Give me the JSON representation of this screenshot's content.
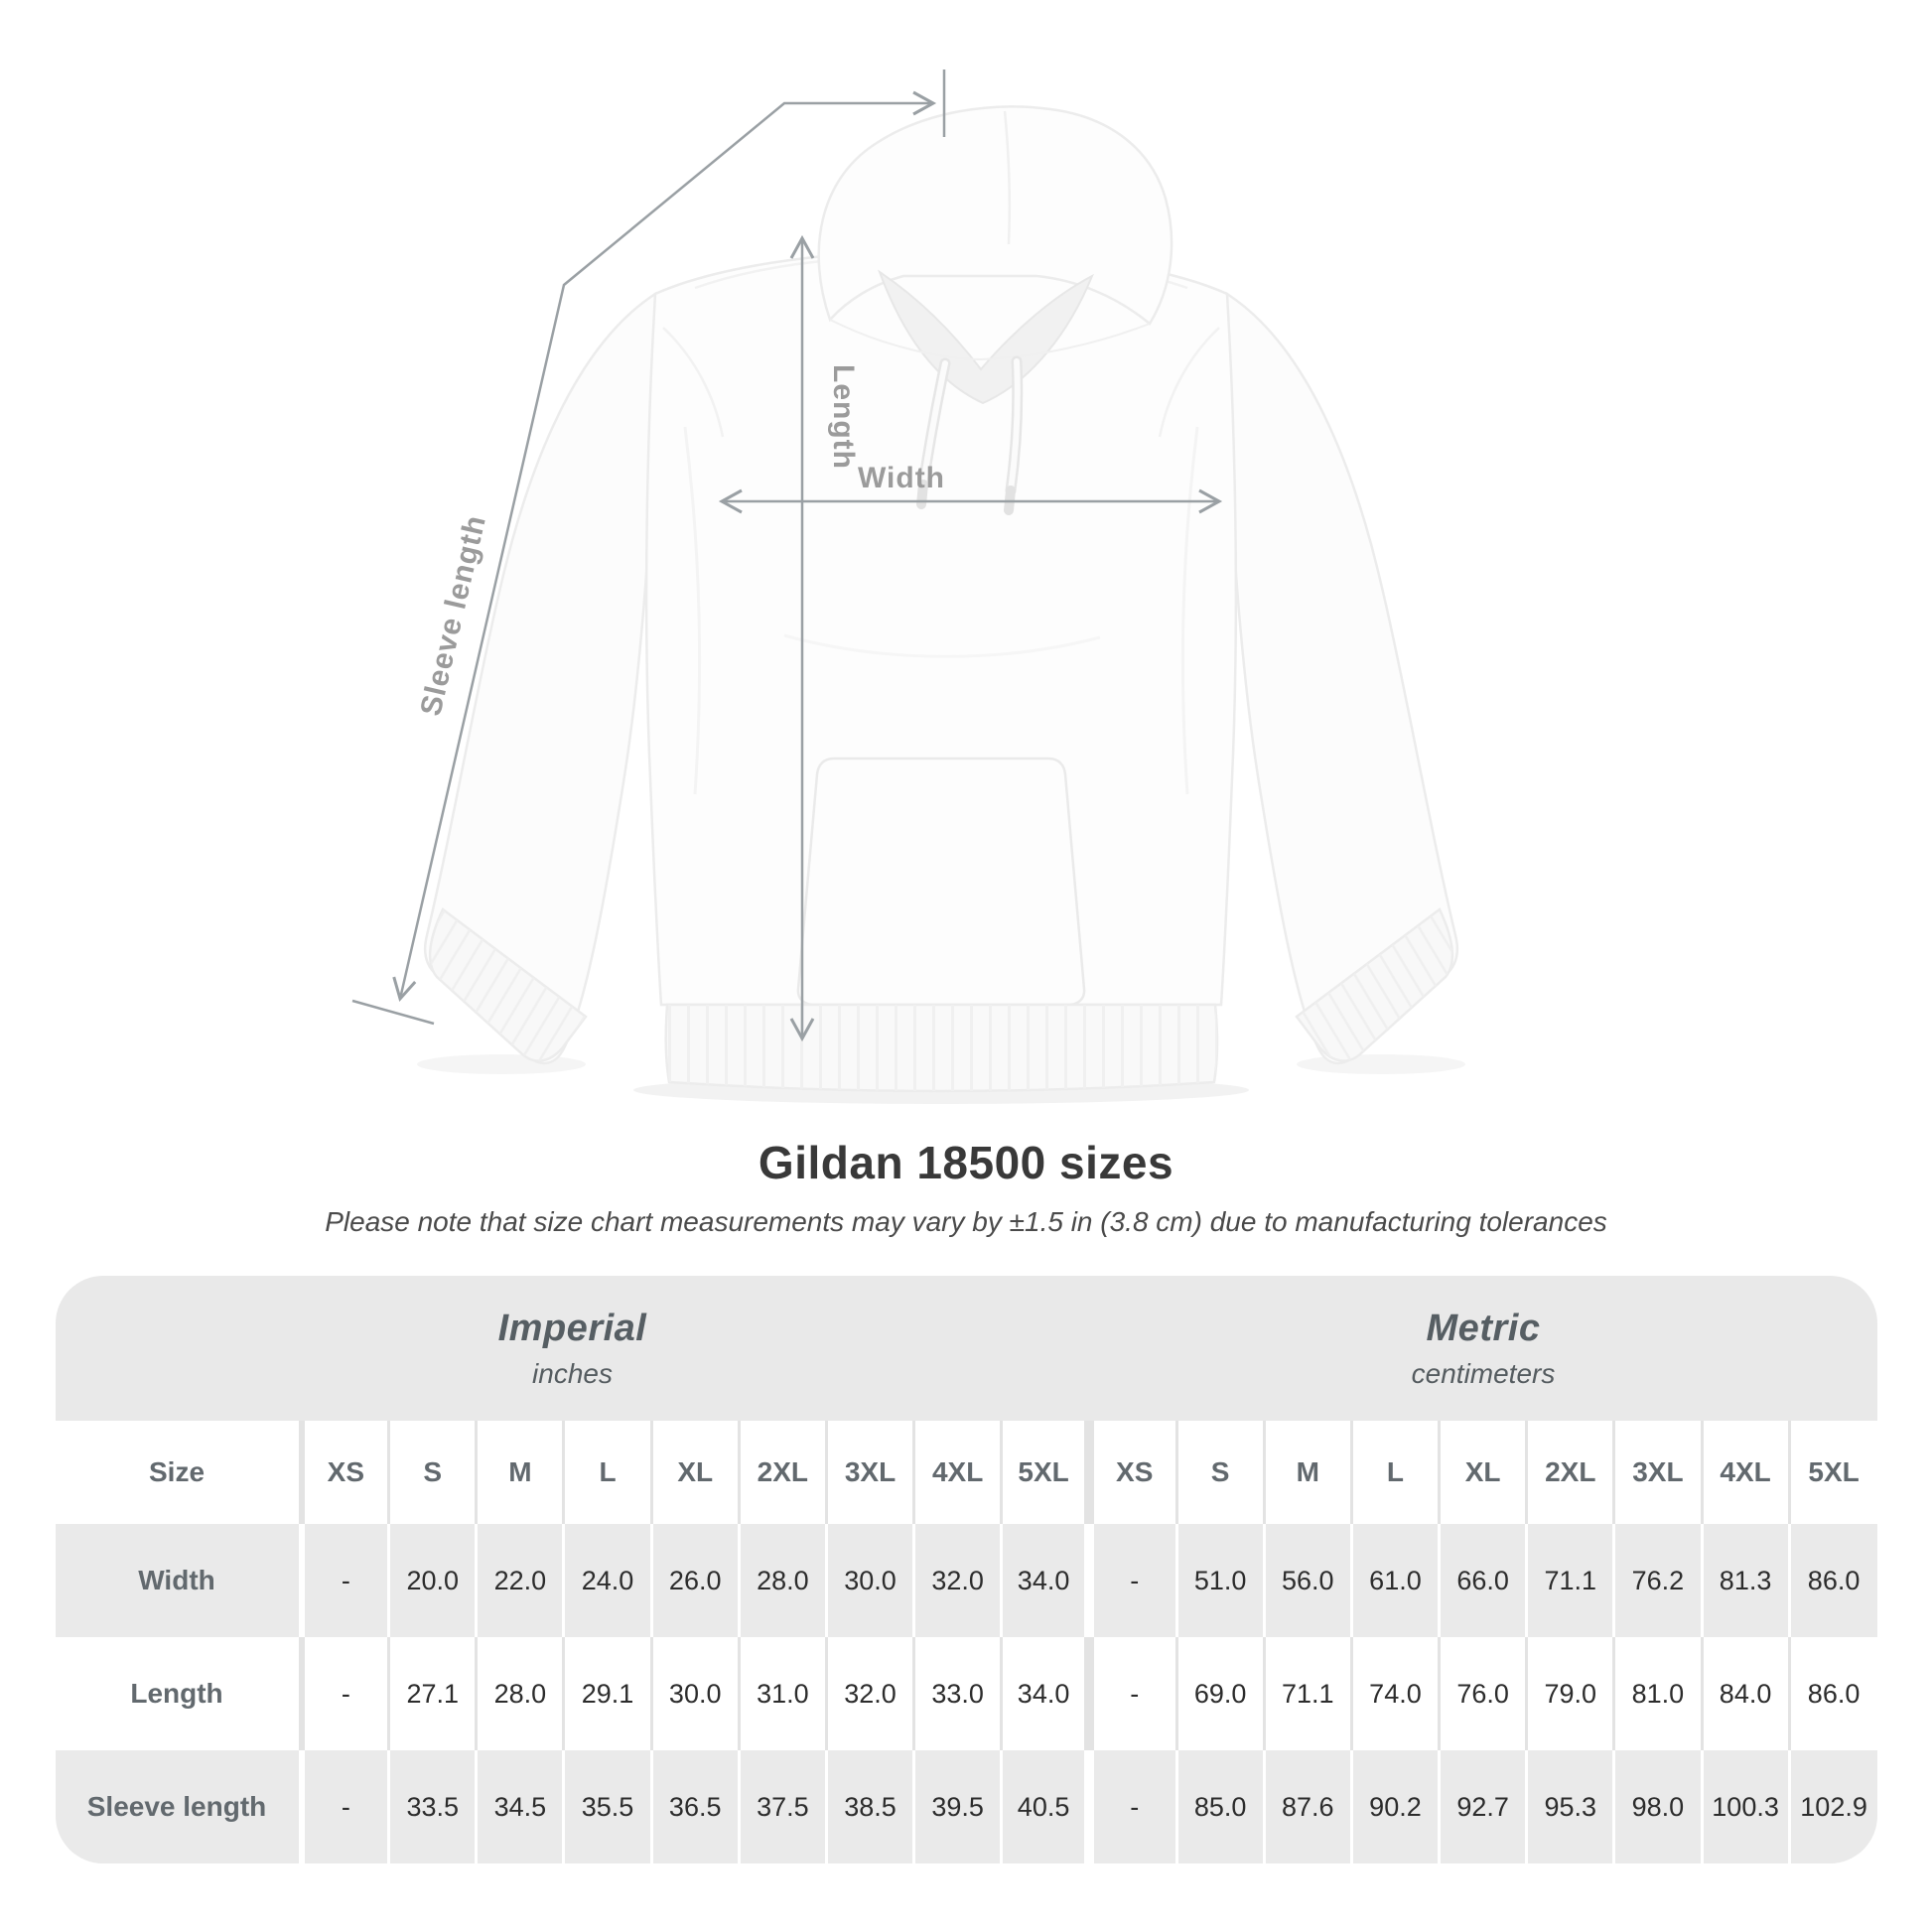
{
  "diagram": {
    "labels": {
      "length": "Length",
      "width": "Width",
      "sleeve": "Sleeve length"
    },
    "annotation_color": "#9aa0a4"
  },
  "title": "Gildan 18500 sizes",
  "subtitle": "Please note that size chart measurements may vary by ±1.5 in (3.8 cm) due to manufacturing tolerances",
  "table": {
    "groups": [
      {
        "name": "Imperial",
        "unit": "inches"
      },
      {
        "name": "Metric",
        "unit": "centimeters"
      }
    ],
    "size_header": "Size",
    "sizes": [
      "XS",
      "S",
      "M",
      "L",
      "XL",
      "2XL",
      "3XL",
      "4XL",
      "5XL"
    ],
    "rows": [
      {
        "label": "Width",
        "imperial": [
          "-",
          "20.0",
          "22.0",
          "24.0",
          "26.0",
          "28.0",
          "30.0",
          "32.0",
          "34.0"
        ],
        "metric": [
          "-",
          "51.0",
          "56.0",
          "61.0",
          "66.0",
          "71.1",
          "76.2",
          "81.3",
          "86.0"
        ]
      },
      {
        "label": "Length",
        "imperial": [
          "-",
          "27.1",
          "28.0",
          "29.1",
          "30.0",
          "31.0",
          "32.0",
          "33.0",
          "34.0"
        ],
        "metric": [
          "-",
          "69.0",
          "71.1",
          "74.0",
          "76.0",
          "79.0",
          "81.0",
          "84.0",
          "86.0"
        ]
      },
      {
        "label": "Sleeve length",
        "imperial": [
          "-",
          "33.5",
          "34.5",
          "35.5",
          "36.5",
          "37.5",
          "38.5",
          "39.5",
          "40.5"
        ],
        "metric": [
          "-",
          "85.0",
          "87.6",
          "90.2",
          "92.7",
          "95.3",
          "98.0",
          "100.3",
          "102.9"
        ]
      }
    ]
  },
  "colors": {
    "band_gray": "#e9e9e9",
    "stripe_gray": "#eaeaea",
    "annotation_gray": "#9aa0a4"
  }
}
